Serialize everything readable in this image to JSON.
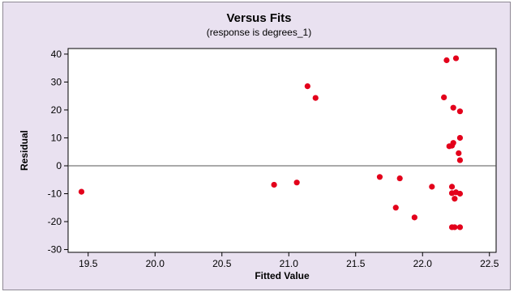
{
  "chart_data": {
    "type": "scatter",
    "title": "Versus Fits",
    "subtitle": "(response is degrees_1)",
    "xlabel": "Fitted Value",
    "ylabel": "Residual",
    "xlim": [
      19.35,
      22.55
    ],
    "ylim": [
      -31,
      42
    ],
    "xticks": [
      19.5,
      20.0,
      20.5,
      21.0,
      21.5,
      22.0,
      22.5
    ],
    "xtick_labels": [
      "19.5",
      "20.0",
      "20.5",
      "21.0",
      "21.5",
      "22.0",
      "22.5"
    ],
    "yticks": [
      -30,
      -20,
      -10,
      0,
      10,
      20,
      30,
      40
    ],
    "ytick_labels": [
      "-30",
      "-20",
      "-10",
      "0",
      "10",
      "20",
      "30",
      "40"
    ],
    "reference_line_y": 0,
    "point_color": "#e3001b",
    "points": [
      {
        "x": 19.45,
        "y": -9.3
      },
      {
        "x": 20.89,
        "y": -6.8
      },
      {
        "x": 21.06,
        "y": -6.0
      },
      {
        "x": 21.14,
        "y": 28.5
      },
      {
        "x": 21.2,
        "y": 24.3
      },
      {
        "x": 21.68,
        "y": -4.0
      },
      {
        "x": 21.83,
        "y": -4.5
      },
      {
        "x": 21.8,
        "y": -15.0
      },
      {
        "x": 21.94,
        "y": -18.5
      },
      {
        "x": 22.07,
        "y": -7.5
      },
      {
        "x": 22.16,
        "y": 24.5
      },
      {
        "x": 22.18,
        "y": 37.8
      },
      {
        "x": 22.25,
        "y": 38.5
      },
      {
        "x": 22.23,
        "y": 20.8
      },
      {
        "x": 22.28,
        "y": 19.5
      },
      {
        "x": 22.28,
        "y": 10.0
      },
      {
        "x": 22.23,
        "y": 8.2
      },
      {
        "x": 22.2,
        "y": 7.0
      },
      {
        "x": 22.22,
        "y": 7.2
      },
      {
        "x": 22.27,
        "y": 4.5
      },
      {
        "x": 22.28,
        "y": 2.0
      },
      {
        "x": 22.22,
        "y": -7.5
      },
      {
        "x": 22.22,
        "y": -9.8
      },
      {
        "x": 22.25,
        "y": -9.5
      },
      {
        "x": 22.28,
        "y": -10.0
      },
      {
        "x": 22.24,
        "y": -11.8
      },
      {
        "x": 22.22,
        "y": -22.0
      },
      {
        "x": 22.24,
        "y": -22.0
      },
      {
        "x": 22.28,
        "y": -22.0
      }
    ]
  }
}
